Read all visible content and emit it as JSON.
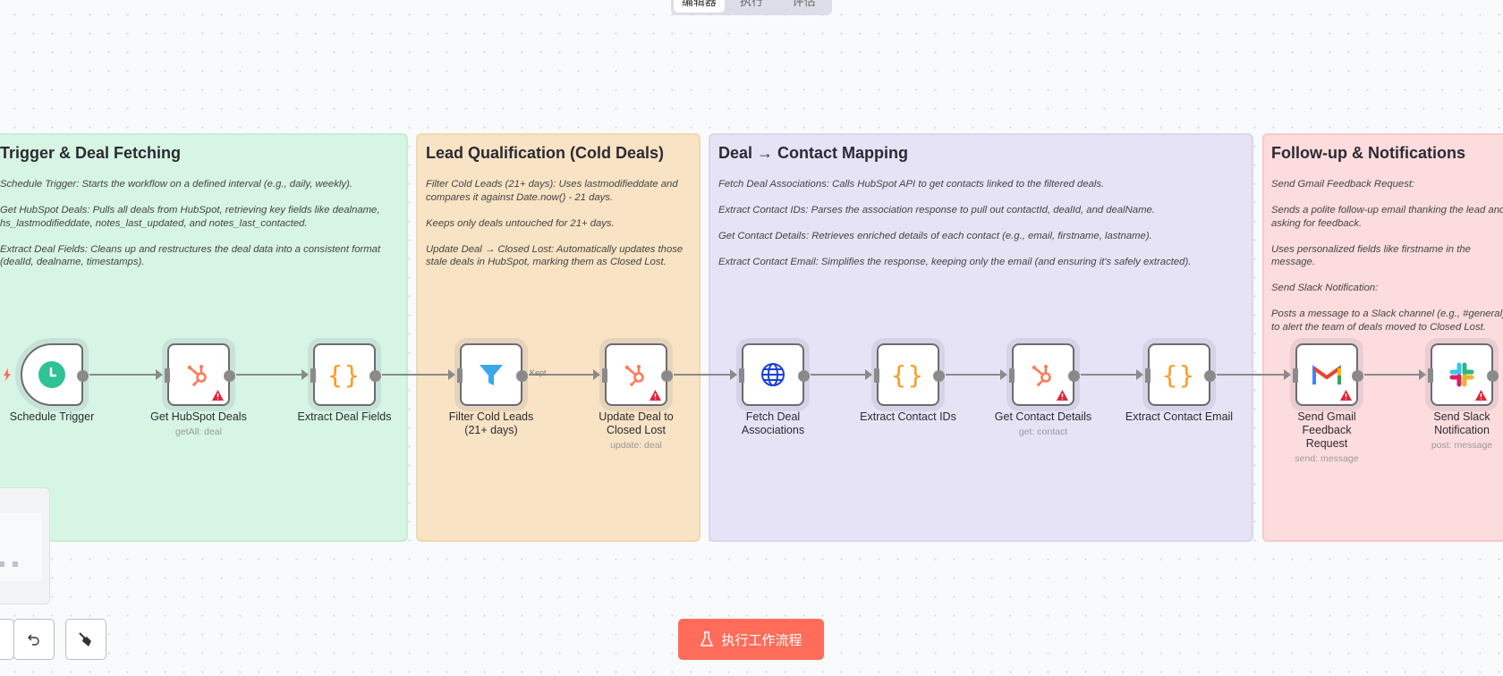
{
  "tabs": [
    {
      "label": "编辑器",
      "active": true
    },
    {
      "label": "执行",
      "active": false
    },
    {
      "label": "评估",
      "active": false
    }
  ],
  "groups": [
    {
      "title": "Trigger & Deal Fetching",
      "color": "#d6f5e4",
      "description": "Schedule Trigger: Starts the workflow on a defined interval (e.g., daily, weekly).\n\nGet HubSpot Deals: Pulls all deals from HubSpot, retrieving key fields like dealname,\nhs_lastmodifieddate, notes_last_updated, and notes_last_contacted.\n\nExtract Deal Fields: Cleans up and restructures the deal data into a consistent format\n(dealId, dealname, timestamps)."
    },
    {
      "title": "Lead Qualification (Cold Deals)",
      "color": "#f8e3c4",
      "description": "Filter Cold Leads (21+ days): Uses lastmodifieddate and\ncompares it against Date.now() - 21 days.\n\nKeeps only deals untouched for 21+ days.\n\nUpdate Deal → Closed Lost: Automatically updates those\nstale deals in HubSpot, marking them as Closed Lost."
    },
    {
      "title": "Deal → Contact Mapping",
      "color": "#e6e3f6",
      "description": "Fetch Deal Associations: Calls HubSpot API to get contacts linked to the filtered deals.\n\nExtract Contact IDs: Parses the association response to pull out contactId, dealId, and dealName.\n\nGet Contact Details: Retrieves enriched details of each contact (e.g., email, firstname, lastname).\n\nExtract Contact Email: Simplifies the response, keeping only the email (and ensuring it's safely extracted)."
    },
    {
      "title": "Follow-up & Notifications",
      "color": "#fddcde",
      "description": "Send Gmail Feedback Request:\n\nSends a polite follow-up email thanking the lead and\nasking for feedback.\n\nUses personalized fields like firstname in the\nmessage.\n\nSend Slack Notification:\n\nPosts a message to a Slack channel (e.g., #general)\nto alert the team of deals moved to Closed Lost."
    }
  ],
  "nodes": [
    {
      "name": "Schedule Trigger",
      "subtitle": "",
      "icon": "clock-icon",
      "warning": false,
      "trigger": true
    },
    {
      "name": "Get HubSpot Deals",
      "subtitle": "getAll: deal",
      "icon": "hubspot-icon",
      "warning": true
    },
    {
      "name": "Extract Deal Fields",
      "subtitle": "",
      "icon": "code-braces-icon",
      "warning": false
    },
    {
      "name": "Filter Cold Leads (21+ days)",
      "subtitle": "",
      "icon": "filter-icon",
      "warning": false
    },
    {
      "name": "Update Deal to Closed Lost",
      "subtitle": "update: deal",
      "icon": "hubspot-icon",
      "warning": true
    },
    {
      "name": "Fetch Deal Associations",
      "subtitle": "",
      "icon": "globe-icon",
      "warning": false
    },
    {
      "name": "Extract Contact IDs",
      "subtitle": "",
      "icon": "code-braces-icon",
      "warning": false
    },
    {
      "name": "Get Contact Details",
      "subtitle": "get: contact",
      "icon": "hubspot-icon",
      "warning": true
    },
    {
      "name": "Extract Contact Email",
      "subtitle": "",
      "icon": "code-braces-icon",
      "warning": false
    },
    {
      "name": "Send Gmail Feedback Request",
      "subtitle": "send: message",
      "icon": "gmail-icon",
      "warning": true
    },
    {
      "name": "Send Slack Notification",
      "subtitle": "post: message",
      "icon": "slack-icon",
      "warning": true
    }
  ],
  "filter_output_label": "Kept",
  "controls": {
    "undo_icon": "undo-icon",
    "tidy_icon": "broom-icon"
  },
  "run_button": {
    "label": "执行工作流程",
    "icon": "flask-icon",
    "color": "#ff6d5a"
  }
}
